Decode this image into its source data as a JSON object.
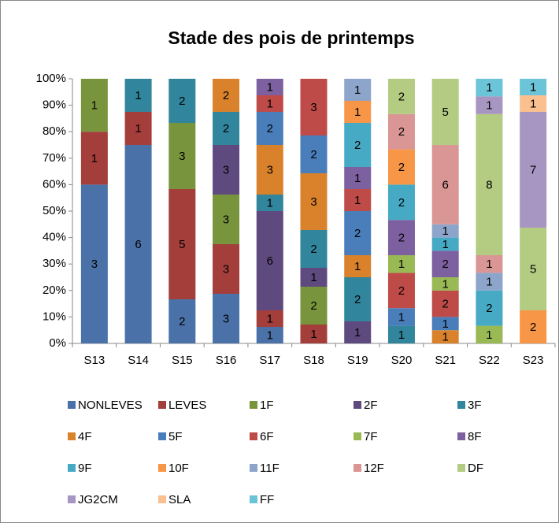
{
  "chart_data": {
    "type": "bar",
    "stacked": "percent",
    "title": "Stade des pois de printemps",
    "categories": [
      "S13",
      "S14",
      "S15",
      "S16",
      "S17",
      "S18",
      "S19",
      "S20",
      "S21",
      "S22",
      "S23"
    ],
    "series": [
      {
        "name": "NONLEVES",
        "color": "#4a72a8",
        "values": [
          3,
          6,
          2,
          3,
          1,
          null,
          null,
          null,
          null,
          null,
          null
        ]
      },
      {
        "name": "LEVES",
        "color": "#a33e3b",
        "values": [
          1,
          1,
          5,
          3,
          1,
          1,
          null,
          null,
          null,
          null,
          null
        ]
      },
      {
        "name": "1F",
        "color": "#78953d",
        "values": [
          1,
          null,
          3,
          3,
          null,
          2,
          null,
          null,
          null,
          null,
          null
        ]
      },
      {
        "name": "2F",
        "color": "#5f4a80",
        "values": [
          null,
          null,
          null,
          3,
          6,
          1,
          1,
          null,
          null,
          null,
          null
        ]
      },
      {
        "name": "3F",
        "color": "#31859c",
        "values": [
          null,
          1,
          2,
          2,
          1,
          2,
          2,
          1,
          null,
          null,
          null
        ]
      },
      {
        "name": "4F",
        "color": "#d9822b",
        "values": [
          null,
          null,
          null,
          2,
          3,
          3,
          1,
          null,
          1,
          null,
          null
        ]
      },
      {
        "name": "5F",
        "color": "#4a7ebb",
        "values": [
          null,
          null,
          null,
          null,
          2,
          2,
          2,
          1,
          1,
          null,
          null
        ]
      },
      {
        "name": "6F",
        "color": "#be4b48",
        "values": [
          null,
          null,
          null,
          null,
          1,
          3,
          1,
          2,
          2,
          null,
          null
        ]
      },
      {
        "name": "7F",
        "color": "#98b954",
        "values": [
          null,
          null,
          null,
          null,
          null,
          null,
          null,
          1,
          1,
          1,
          null
        ]
      },
      {
        "name": "8F",
        "color": "#7d60a0",
        "values": [
          null,
          null,
          null,
          null,
          1,
          null,
          1,
          2,
          2,
          null,
          null
        ]
      },
      {
        "name": "9F",
        "color": "#46aac5",
        "values": [
          null,
          null,
          null,
          null,
          null,
          null,
          2,
          2,
          1,
          2,
          null
        ]
      },
      {
        "name": "10F",
        "color": "#f79646",
        "values": [
          null,
          null,
          null,
          null,
          null,
          null,
          1,
          2,
          null,
          null,
          2
        ]
      },
      {
        "name": "11F",
        "color": "#8ea5cb",
        "values": [
          null,
          null,
          null,
          null,
          null,
          null,
          1,
          null,
          1,
          1,
          null
        ]
      },
      {
        "name": "12F",
        "color": "#d99694",
        "values": [
          null,
          null,
          null,
          null,
          null,
          null,
          null,
          2,
          6,
          1,
          null
        ]
      },
      {
        "name": "DF",
        "color": "#b3cc82",
        "values": [
          null,
          null,
          null,
          null,
          null,
          null,
          null,
          2,
          5,
          8,
          5
        ]
      },
      {
        "name": "JG2CM",
        "color": "#a896c2",
        "values": [
          null,
          null,
          null,
          null,
          null,
          null,
          null,
          null,
          null,
          1,
          7
        ]
      },
      {
        "name": "SLA",
        "color": "#fac090",
        "values": [
          null,
          null,
          null,
          null,
          null,
          null,
          null,
          null,
          null,
          null,
          1
        ]
      },
      {
        "name": "FF",
        "color": "#6cc4d8",
        "values": [
          null,
          null,
          null,
          null,
          null,
          null,
          null,
          null,
          null,
          1,
          1
        ]
      }
    ],
    "ylim": [
      0,
      100
    ],
    "yticks": [
      {
        "value": 0,
        "label": "0%"
      },
      {
        "value": 10,
        "label": "10%"
      },
      {
        "value": 20,
        "label": "20%"
      },
      {
        "value": 30,
        "label": "30%"
      },
      {
        "value": 40,
        "label": "40%"
      },
      {
        "value": 50,
        "label": "50%"
      },
      {
        "value": 60,
        "label": "60%"
      },
      {
        "value": 70,
        "label": "70%"
      },
      {
        "value": 80,
        "label": "80%"
      },
      {
        "value": 90,
        "label": "90%"
      },
      {
        "value": 100,
        "label": "100%"
      }
    ],
    "grid": false,
    "legend": "bottom"
  }
}
